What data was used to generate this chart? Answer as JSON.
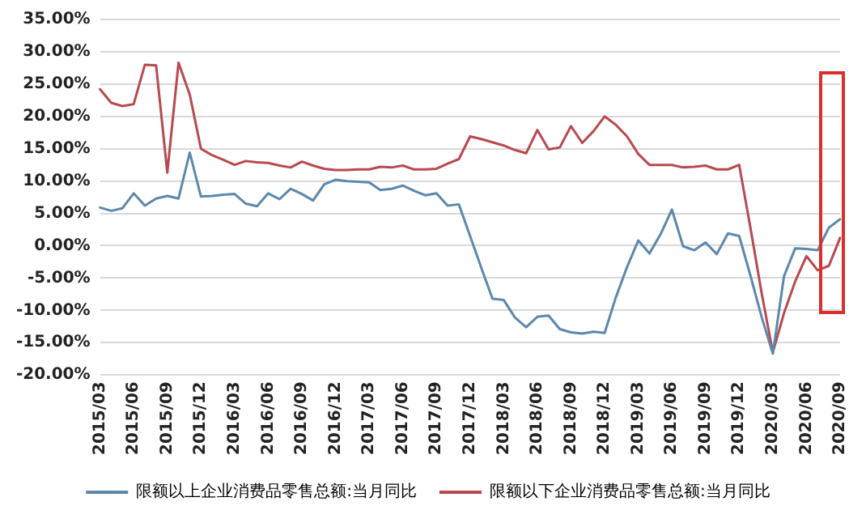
{
  "chart_data": {
    "type": "line",
    "categories": [
      "2015/03",
      null,
      null,
      "2015/06",
      null,
      null,
      "2015/09",
      null,
      null,
      "2015/12",
      null,
      null,
      "2016/03",
      null,
      null,
      "2016/06",
      null,
      null,
      "2016/09",
      null,
      null,
      "2016/12",
      null,
      null,
      "2017/03",
      null,
      null,
      "2017/06",
      null,
      null,
      "2017/09",
      null,
      null,
      "2017/12",
      null,
      null,
      "2018/03",
      null,
      null,
      "2018/06",
      null,
      null,
      "2018/09",
      null,
      null,
      "2018/12",
      null,
      null,
      "2019/03",
      null,
      null,
      "2019/06",
      null,
      null,
      "2019/09",
      null,
      null,
      "2019/12",
      null,
      null,
      "2020/03",
      null,
      null,
      "2020/06",
      null,
      null,
      "2020/09"
    ],
    "series": [
      {
        "name": "限额以上企业消费品零售总额:当月同比",
        "color": "#5b88ad",
        "values": [
          5.9,
          5.4,
          5.8,
          8.1,
          6.2,
          7.3,
          7.7,
          7.3,
          14.4,
          7.6,
          7.7,
          7.9,
          8.0,
          6.5,
          6.1,
          8.1,
          7.2,
          8.8,
          8.0,
          7.0,
          9.5,
          10.2,
          10.0,
          9.9,
          9.8,
          8.6,
          8.8,
          9.3,
          8.5,
          7.8,
          8.1,
          6.2,
          6.4,
          1.5,
          -3.4,
          -8.2,
          -8.4,
          -11.1,
          -12.6,
          -11.0,
          -10.8,
          -12.9,
          -13.4,
          -13.6,
          -13.3,
          -13.5,
          -8.0,
          -3.3,
          0.8,
          -1.2,
          1.8,
          5.6,
          -0.1,
          -0.7,
          0.5,
          -1.3,
          1.9,
          1.5,
          -4.6,
          -11.0,
          -16.7,
          -4.7,
          -0.4,
          -0.5,
          -0.7,
          2.8,
          4.1
        ]
      },
      {
        "name": "限额以下企业消费品零售总额:当月同比",
        "color": "#b8494f",
        "values": [
          24.2,
          22.1,
          21.6,
          21.9,
          28.0,
          27.9,
          11.3,
          28.3,
          23.4,
          15.0,
          14.0,
          13.3,
          12.5,
          13.1,
          12.9,
          12.8,
          12.4,
          12.1,
          13.0,
          12.4,
          11.9,
          11.7,
          11.7,
          11.8,
          11.8,
          12.2,
          12.1,
          12.4,
          11.8,
          11.8,
          11.9,
          12.7,
          13.4,
          16.9,
          16.5,
          16.0,
          15.5,
          14.8,
          14.3,
          17.9,
          14.9,
          15.2,
          18.5,
          15.9,
          17.7,
          20.0,
          18.7,
          16.9,
          14.2,
          12.5,
          12.5,
          12.5,
          12.1,
          12.2,
          12.4,
          11.8,
          11.8,
          12.5,
          2.8,
          -7.3,
          -16.5,
          -10.4,
          -5.5,
          -1.6,
          -3.8,
          -3.1,
          1.2
        ]
      }
    ],
    "ylim": [
      -20,
      35
    ],
    "yticks": [
      {
        "value": -20,
        "label": "-20.00%"
      },
      {
        "value": -15,
        "label": "-15.00%"
      },
      {
        "value": -10,
        "label": "-10.00%"
      },
      {
        "value": -5,
        "label": "-5.00%"
      },
      {
        "value": 0,
        "label": "0.00%"
      },
      {
        "value": 5,
        "label": "5.00%"
      },
      {
        "value": 10,
        "label": "10.00%"
      },
      {
        "value": 15,
        "label": "15.00%"
      },
      {
        "value": 20,
        "label": "20.00%"
      },
      {
        "value": 25,
        "label": "25.00%"
      },
      {
        "value": 30,
        "label": "30.00%"
      },
      {
        "value": 35,
        "label": "35.00%"
      }
    ],
    "grid": "y",
    "legend": "bottom",
    "marker": "none",
    "line_style": "solid"
  }
}
